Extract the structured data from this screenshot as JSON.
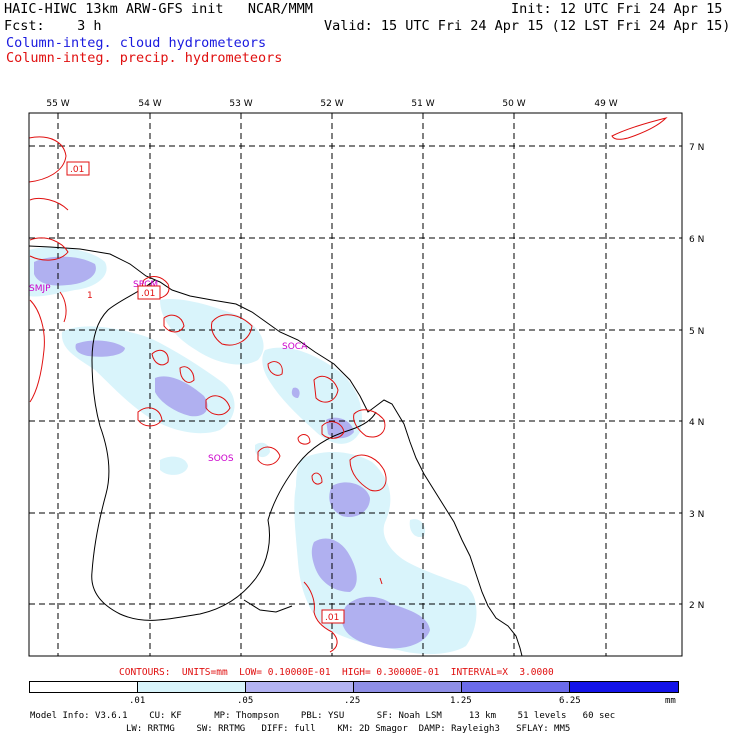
{
  "header": {
    "title": "HAIC-HIWC 13km ARW-GFS init   NCAR/MMM",
    "init": "Init: 12 UTC Fri 24 Apr 15",
    "fcst": "Fcst:    3 h",
    "valid": "Valid: 15 UTC Fri 24 Apr 15 (12 LST Fri 24 Apr 15)",
    "legend_cloud": "Column-integ. cloud hydrometeors",
    "legend_precip": "Column-integ. precip. hydrometeors"
  },
  "map": {
    "lon_labels": [
      "55 W",
      "54 W",
      "53 W",
      "52 W",
      "51 W",
      "50 W",
      "49 W"
    ],
    "lat_labels": [
      "7 N",
      "6 N",
      "5 N",
      "4 N",
      "3 N",
      "2 N"
    ],
    "stations": [
      "SMJP",
      "SPCM",
      "SOCA",
      "SOOS"
    ],
    "contour_labels": [
      ".01",
      ".01",
      ".01"
    ],
    "extra_label": "1",
    "colors": {
      "coast": "#000000",
      "grid": "#000000",
      "precip": "#e01010",
      "station": "#cc00cc"
    }
  },
  "contours_note": "CONTOURS:  UNITS=mm  LOW= 0.10000E-01  HIGH= 0.30000E-01  INTERVAL=X  3.0000",
  "colorbar": {
    "labels": [
      ".01",
      ".05",
      ".25",
      "1.25",
      "6.25"
    ],
    "unit": "mm",
    "colors": [
      "#ffffff",
      "#d8f4fb",
      "#b3b3f2",
      "#8f8fe6",
      "#6b6bea",
      "#1313e8"
    ]
  },
  "footer": {
    "line1": "Model Info: V3.6.1    CU: KF      MP: Thompson    PBL: YSU      SF: Noah LSM     13 km    51 levels   60 sec",
    "line2": "LW: RRTMG    SW: RRTMG   DIFF: full    KM: 2D Smagor  DAMP: Rayleigh3   SFLAY: MM5"
  }
}
